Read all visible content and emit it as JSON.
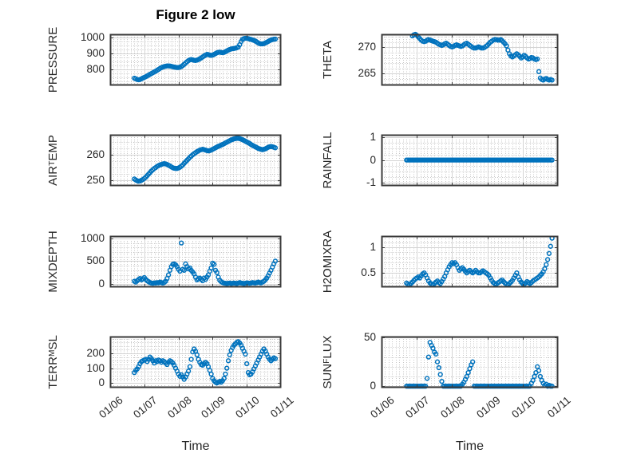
{
  "figure": {
    "background": "#ffffff",
    "marker_color": "#0072BD",
    "axis_color": "#3a3a3a",
    "major_grid_color": "#d4d4d4",
    "minor_grid_color": "#c6c6c6",
    "text_color": "#262626"
  },
  "time_axis": {
    "label": "Time",
    "tick_labels": [
      "01/06",
      "01/07",
      "01/08",
      "01/09",
      "01/10",
      "01/11"
    ],
    "range_days": [
      0,
      5
    ],
    "minor_step_days": 0.1,
    "tick_rotation_deg": 40
  },
  "chart_data": [
    {
      "name": "PRESSURE",
      "type": "scatter",
      "marker": "o",
      "title": "Figure 2 low",
      "ylabel_parts": [
        {
          "text": "PRESSURE",
          "sub": false
        }
      ],
      "ylim": [
        700,
        1020
      ],
      "yticks": [
        800,
        900,
        1000
      ],
      "minor_y_step": 25,
      "t0_days": 0.708,
      "dt_days": 0.041667,
      "values": [
        745,
        741,
        737,
        735,
        737,
        741,
        746,
        750,
        754,
        759,
        764,
        769,
        774,
        779,
        784,
        789,
        794,
        800,
        806,
        811,
        815,
        818,
        820,
        822,
        822,
        821,
        819,
        817,
        815,
        813,
        812,
        812,
        814,
        818,
        824,
        832,
        840,
        848,
        855,
        860,
        862,
        860,
        857,
        856,
        858,
        862,
        867,
        872,
        878,
        884,
        890,
        894,
        893,
        890,
        888,
        890,
        894,
        899,
        904,
        907,
        908,
        906,
        905,
        907,
        911,
        916,
        921,
        925,
        928,
        930,
        931,
        933,
        936,
        940,
        955,
        975,
        988,
        993,
        995,
        995,
        993,
        990,
        988,
        985,
        982,
        978,
        972,
        966,
        962,
        960,
        960,
        962,
        966,
        970,
        975,
        980,
        984,
        987,
        989,
        990
      ]
    },
    {
      "name": "THETA",
      "type": "scatter",
      "marker": "o",
      "ylabel_parts": [
        {
          "text": "THETA",
          "sub": false
        }
      ],
      "ylim": [
        262.8,
        272.5
      ],
      "yticks": [
        265,
        270
      ],
      "minor_y_step": 1,
      "t0_days": 0.875,
      "dt_days": 0.041667,
      "values": [
        272.2,
        272.4,
        272.5,
        272.3,
        272.0,
        271.7,
        271.4,
        271.2,
        271.1,
        271.2,
        271.4,
        271.5,
        271.4,
        271.3,
        271.2,
        271.1,
        271.0,
        270.8,
        270.6,
        270.5,
        270.4,
        270.5,
        270.7,
        270.8,
        270.6,
        270.4,
        270.2,
        270.1,
        270.2,
        270.4,
        270.5,
        270.4,
        270.3,
        270.2,
        270.3,
        270.5,
        270.7,
        270.8,
        270.6,
        270.4,
        270.2,
        270.0,
        269.9,
        269.9,
        270.0,
        270.1,
        270.0,
        269.9,
        269.9,
        270.0,
        270.2,
        270.4,
        270.7,
        271.0,
        271.2,
        271.4,
        271.5,
        271.5,
        271.4,
        271.4,
        271.5,
        271.3,
        271.0,
        270.7,
        270.3,
        269.5,
        268.8,
        268.4,
        268.2,
        268.4,
        268.6,
        268.8,
        268.6,
        268.3,
        268.0,
        268.2,
        268.5,
        268.3,
        268.0,
        267.8,
        267.9,
        268.1,
        268.0,
        267.8,
        267.7,
        267.8,
        265.4,
        264.2,
        263.9,
        263.8,
        264.0,
        264.1,
        263.9,
        263.8,
        263.9,
        263.8
      ]
    },
    {
      "name": "AIR_TEMP",
      "type": "scatter",
      "marker": "o",
      "ylabel_parts": [
        {
          "text": "AIR",
          "sub": false
        },
        {
          "text": "T",
          "sub": true
        },
        {
          "text": "EMP",
          "sub": false
        }
      ],
      "ylim": [
        247.8,
        267.8
      ],
      "yticks": [
        250,
        260
      ],
      "minor_y_step": 2.5,
      "t0_days": 0.708,
      "dt_days": 0.041667,
      "values": [
        250.5,
        250.1,
        249.8,
        249.6,
        249.7,
        250.0,
        250.3,
        250.7,
        251.2,
        251.8,
        252.4,
        253.0,
        253.6,
        254.1,
        254.6,
        255.0,
        255.4,
        255.7,
        256.0,
        256.2,
        256.4,
        256.5,
        256.4,
        256.2,
        255.9,
        255.6,
        255.2,
        254.9,
        254.7,
        254.6,
        254.6,
        254.8,
        255.1,
        255.5,
        256.0,
        256.6,
        257.2,
        257.8,
        258.4,
        259.0,
        259.5,
        260.0,
        260.4,
        260.8,
        261.2,
        261.5,
        261.8,
        262.0,
        262.1,
        262.0,
        261.8,
        261.6,
        261.5,
        261.6,
        261.8,
        262.1,
        262.4,
        262.7,
        263.0,
        263.3,
        263.5,
        263.8,
        264.0,
        264.3,
        264.6,
        264.9,
        265.2,
        265.5,
        265.8,
        266.0,
        266.2,
        266.3,
        266.4,
        266.4,
        266.3,
        266.1,
        265.9,
        265.6,
        265.3,
        265.0,
        264.7,
        264.4,
        264.0,
        263.7,
        263.4,
        263.1,
        262.8,
        262.5,
        262.3,
        262.1,
        262.0,
        262.1,
        262.3,
        262.6,
        262.9,
        263.1,
        263.2,
        263.1,
        262.9,
        262.7
      ]
    },
    {
      "name": "RAINFALL",
      "type": "scatter",
      "marker": "o",
      "ylabel_parts": [
        {
          "text": "RAINFALL",
          "sub": false
        }
      ],
      "ylim": [
        -1.15,
        1.12
      ],
      "yticks": [
        -1,
        0,
        1
      ],
      "minor_y_step": 0.25,
      "t0_days": 0.708,
      "dt_days": 0.041667,
      "values": [
        0,
        0,
        0,
        0,
        0,
        0,
        0,
        0,
        0,
        0,
        0,
        0,
        0,
        0,
        0,
        0,
        0,
        0,
        0,
        0,
        0,
        0,
        0,
        0,
        0,
        0,
        0,
        0,
        0,
        0,
        0,
        0,
        0,
        0,
        0,
        0,
        0,
        0,
        0,
        0,
        0,
        0,
        0,
        0,
        0,
        0,
        0,
        0,
        0,
        0,
        0,
        0,
        0,
        0,
        0,
        0,
        0,
        0,
        0,
        0,
        0,
        0,
        0,
        0,
        0,
        0,
        0,
        0,
        0,
        0,
        0,
        0,
        0,
        0,
        0,
        0,
        0,
        0,
        0,
        0,
        0,
        0,
        0,
        0,
        0,
        0,
        0,
        0,
        0,
        0,
        0,
        0,
        0,
        0,
        0,
        0,
        0,
        0,
        0,
        0
      ]
    },
    {
      "name": "MIXDEPTH",
      "type": "scatter",
      "marker": "o",
      "ylabel_parts": [
        {
          "text": "MIXDEPTH",
          "sub": false
        }
      ],
      "ylim": [
        -70,
        1050
      ],
      "yticks": [
        0,
        500,
        1000
      ],
      "minor_y_step": 100,
      "t0_days": 0.708,
      "dt_days": 0.041667,
      "values": [
        60,
        40,
        70,
        100,
        120,
        90,
        110,
        140,
        100,
        70,
        50,
        30,
        20,
        15,
        25,
        20,
        30,
        25,
        40,
        30,
        20,
        35,
        60,
        120,
        200,
        300,
        380,
        430,
        440,
        420,
        380,
        320,
        280,
        900,
        320,
        300,
        440,
        380,
        330,
        350,
        300,
        260,
        220,
        150,
        90,
        110,
        130,
        100,
        70,
        130,
        100,
        150,
        200,
        280,
        350,
        455,
        430,
        300,
        250,
        150,
        80,
        50,
        30,
        20,
        15,
        10,
        15,
        20,
        10,
        15,
        20,
        15,
        10,
        20,
        30,
        20,
        15,
        10,
        15,
        25,
        20,
        15,
        20,
        30,
        25,
        20,
        30,
        40,
        30,
        25,
        40,
        60,
        90,
        130,
        180,
        240,
        300,
        370,
        440,
        500
      ]
    },
    {
      "name": "H2OMIXRA",
      "type": "scatter",
      "marker": "o",
      "ylabel_parts": [
        {
          "text": "H2OMIXRA",
          "sub": false
        }
      ],
      "ylim": [
        0.22,
        1.22
      ],
      "yticks": [
        0.5,
        1
      ],
      "minor_y_step": 0.1,
      "t0_days": 0.708,
      "dt_days": 0.041667,
      "values": [
        0.3,
        0.28,
        0.27,
        0.29,
        0.32,
        0.35,
        0.38,
        0.4,
        0.42,
        0.4,
        0.44,
        0.48,
        0.5,
        0.46,
        0.4,
        0.34,
        0.3,
        0.28,
        0.27,
        0.29,
        0.32,
        0.34,
        0.31,
        0.29,
        0.33,
        0.38,
        0.43,
        0.5,
        0.56,
        0.62,
        0.66,
        0.7,
        0.68,
        0.7,
        0.66,
        0.6,
        0.55,
        0.58,
        0.6,
        0.57,
        0.53,
        0.5,
        0.53,
        0.55,
        0.52,
        0.5,
        0.52,
        0.55,
        0.52,
        0.5,
        0.5,
        0.52,
        0.54,
        0.52,
        0.5,
        0.48,
        0.45,
        0.4,
        0.35,
        0.31,
        0.29,
        0.28,
        0.3,
        0.32,
        0.34,
        0.36,
        0.33,
        0.3,
        0.28,
        0.27,
        0.29,
        0.32,
        0.35,
        0.4,
        0.45,
        0.5,
        0.42,
        0.36,
        0.32,
        0.29,
        0.28,
        0.3,
        0.33,
        0.31,
        0.29,
        0.31,
        0.34,
        0.36,
        0.38,
        0.4,
        0.42,
        0.45,
        0.48,
        0.52,
        0.58,
        0.66,
        0.76,
        0.88,
        1.02,
        1.18
      ]
    },
    {
      "name": "TERR_MSL",
      "type": "scatter",
      "marker": "o",
      "xlabel": "Time",
      "ylabel_parts": [
        {
          "text": "TERR",
          "sub": false
        },
        {
          "text": "M",
          "sub": true
        },
        {
          "text": "SL",
          "sub": false
        }
      ],
      "ylim": [
        -32,
        314
      ],
      "yticks": [
        0,
        100,
        200
      ],
      "minor_y_step": 25,
      "t0_days": 0.708,
      "dt_days": 0.041667,
      "values": [
        70,
        85,
        95,
        110,
        130,
        145,
        150,
        155,
        160,
        145,
        160,
        175,
        165,
        150,
        135,
        150,
        145,
        155,
        150,
        140,
        150,
        145,
        135,
        125,
        140,
        150,
        145,
        135,
        120,
        100,
        80,
        60,
        45,
        55,
        40,
        25,
        40,
        60,
        80,
        110,
        160,
        210,
        230,
        215,
        190,
        160,
        140,
        125,
        120,
        130,
        140,
        130,
        110,
        85,
        60,
        30,
        15,
        5,
        0,
        5,
        10,
        5,
        15,
        30,
        60,
        100,
        150,
        190,
        220,
        240,
        255,
        265,
        275,
        280,
        270,
        255,
        235,
        215,
        195,
        130,
        70,
        55,
        60,
        75,
        95,
        115,
        135,
        155,
        175,
        195,
        215,
        230,
        215,
        195,
        175,
        160,
        150,
        160,
        170,
        165
      ]
    },
    {
      "name": "SUN_FLUX",
      "type": "scatter",
      "marker": "o",
      "xlabel": "Time",
      "ylabel_parts": [
        {
          "text": "SUN",
          "sub": false
        },
        {
          "text": "F",
          "sub": true
        },
        {
          "text": "LUX",
          "sub": false
        }
      ],
      "ylim": [
        -1.5,
        51
      ],
      "yticks": [
        0,
        50
      ],
      "minor_y_step": 10,
      "t0_days": 0.708,
      "dt_days": 0.041667,
      "values": [
        0,
        0,
        0,
        0,
        0,
        0,
        0,
        0,
        0,
        0,
        0,
        0,
        0,
        0,
        8,
        30,
        45,
        42,
        39,
        35,
        33,
        25,
        19,
        12,
        5,
        0,
        0,
        0,
        0,
        0,
        0,
        0,
        0,
        0,
        0,
        0,
        0,
        0,
        2,
        4,
        7,
        10,
        14,
        18,
        22,
        25,
        0,
        0,
        0,
        0,
        0,
        0,
        0,
        0,
        0,
        0,
        0,
        0,
        0,
        0,
        0,
        0,
        0,
        0,
        0,
        0,
        0,
        0,
        0,
        0,
        0,
        0,
        0,
        0,
        0,
        0,
        0,
        0,
        0,
        0,
        0,
        0,
        0,
        0,
        0,
        3,
        6,
        10,
        14,
        20,
        16,
        10,
        6,
        3,
        1,
        2,
        0,
        1,
        0,
        0
      ]
    }
  ]
}
